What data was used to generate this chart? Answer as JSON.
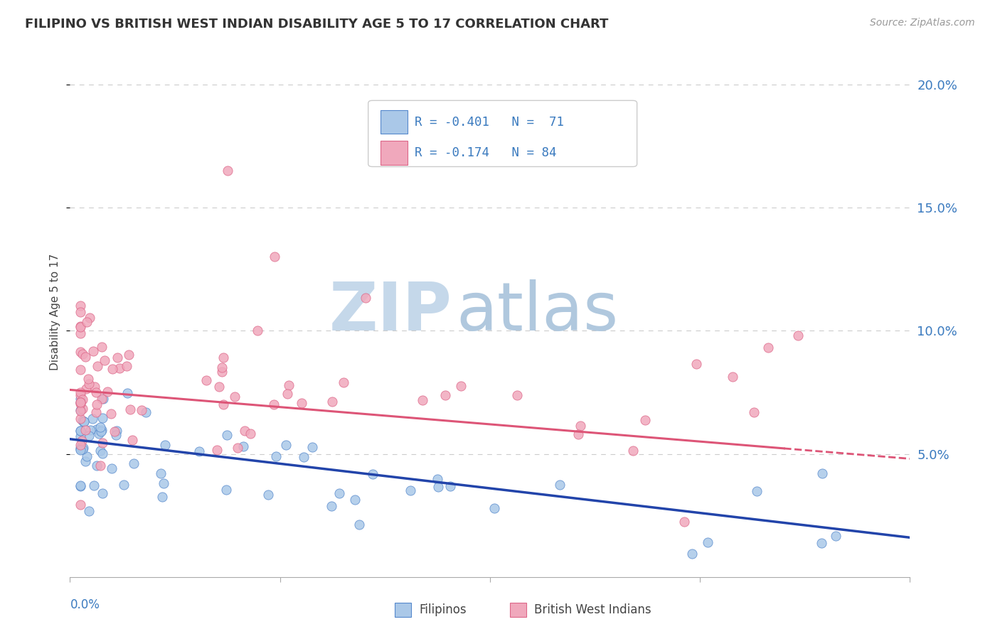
{
  "title": "FILIPINO VS BRITISH WEST INDIAN DISABILITY AGE 5 TO 17 CORRELATION CHART",
  "source": "Source: ZipAtlas.com",
  "ylabel": "Disability Age 5 to 17",
  "xmin": 0.0,
  "xmax": 0.08,
  "ymin": 0.0,
  "ymax": 0.215,
  "yticks": [
    0.05,
    0.1,
    0.15,
    0.2
  ],
  "ytick_labels": [
    "5.0%",
    "10.0%",
    "15.0%",
    "20.0%"
  ],
  "filipino_color": "#aac8e8",
  "bwi_color": "#f0a8bc",
  "filipino_edge": "#5588cc",
  "bwi_edge": "#dd6688",
  "trend_blue": "#2244aa",
  "trend_pink": "#dd5577",
  "background_color": "#ffffff",
  "grid_color": "#cccccc",
  "fil_intercept": 0.056,
  "fil_slope": -0.52,
  "fil_noise": 0.01,
  "bwi_intercept": 0.076,
  "bwi_slope": -0.18,
  "bwi_noise": 0.018,
  "watermark_zip": "ZIP",
  "watermark_atlas": "atlas",
  "watermark_color_zip": "#c8d8e8",
  "watermark_color_atlas": "#b8cce0"
}
